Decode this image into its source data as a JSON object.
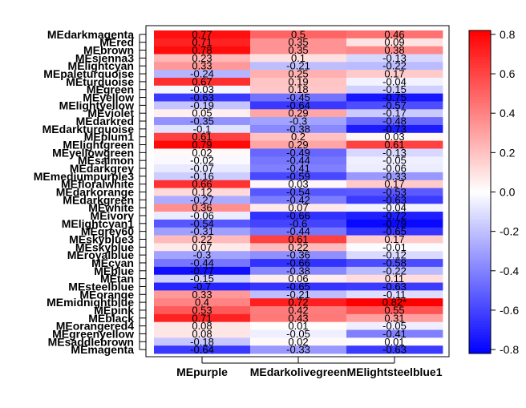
{
  "chart_data": {
    "type": "heatmap",
    "rows": [
      "MEdarkmagenta",
      "MEred",
      "MEbrown",
      "MEsienna3",
      "MElightcyan",
      "MEpaleturquoise",
      "MEturquoise",
      "MEgreen",
      "MEyellow",
      "MElightyellow",
      "MEviolet",
      "MEdarkred",
      "MEdarkturquoise",
      "MEplum1",
      "MElightgreen",
      "MEyellowgreen",
      "MEsalmon",
      "MEdarkgrey",
      "MEmediumpurple3",
      "MEfloralwhite",
      "MEdarkorange",
      "MEdarkgreen",
      "MEwhite",
      "MEivory",
      "MElightcyan1",
      "MEgrey60",
      "MEskyblue3",
      "MEskyblue",
      "MEroyalblue",
      "MEcyan",
      "MEblue",
      "MEtan",
      "MEsteelblue",
      "MEorange",
      "MEmidnightblue",
      "MEpink",
      "MEblack",
      "MEorangered4",
      "MEgreenyellow",
      "MEsaddlebrown",
      "MEmagenta"
    ],
    "columns": [
      "MEpurple",
      "MEdarkolivegreen",
      "MElightsteelblue1"
    ],
    "cell_labels": [
      [
        "0.77",
        "0.5",
        "0.46"
      ],
      [
        "0.71",
        "0.35",
        "0.09"
      ],
      [
        "0.78",
        "0.35",
        "0.38"
      ],
      [
        "0.23",
        "0.1",
        "-0.13"
      ],
      [
        "0.33",
        "-0.21",
        "-0.22"
      ],
      [
        "-0.24",
        "0.25",
        "0.17"
      ],
      [
        "0.67",
        "0.19",
        "-0.04"
      ],
      [
        "-0.03",
        "0.18",
        "-0.15"
      ],
      [
        "-0.63",
        "-0.45",
        "-0.75"
      ],
      [
        "-0.19",
        "-0.64",
        "-0.57"
      ],
      [
        "0.05",
        "0.29",
        "-0.17"
      ],
      [
        "-0.35",
        "-0.3",
        "-0.48"
      ],
      [
        "-0.1",
        "-0.38",
        "-0.73"
      ],
      [
        "0.61",
        "0.2",
        "0.03"
      ],
      [
        "0.79",
        "0.29",
        "0.61"
      ],
      [
        "0.02",
        "-0.49",
        "-0.13"
      ],
      [
        "-0.02",
        "-0.44",
        "-0.05"
      ],
      [
        "-0.07",
        "-0.41",
        "-0.06"
      ],
      [
        "-0.16",
        "-0.59",
        "-0.33"
      ],
      [
        "0.66",
        "0.03",
        "0.17"
      ],
      [
        "0.12",
        "-0.54",
        "-0.53"
      ],
      [
        "-0.27",
        "-0.42",
        "-0.63"
      ],
      [
        "0.36",
        "0.07",
        "-0.04"
      ],
      [
        "-0.06",
        "-0.66",
        "-0.72"
      ],
      [
        "-0.54",
        "-0.6",
        "-0.79"
      ],
      [
        "-0.31",
        "-0.44",
        "-0.65"
      ],
      [
        "0.22",
        "0.61",
        "0.17"
      ],
      [
        "0.07",
        "0.22",
        "-0.01"
      ],
      [
        "-0.3",
        "-0.36",
        "-0.12"
      ],
      [
        "-0.44",
        "-0.66",
        "-0.58"
      ],
      [
        "-0.77",
        "-0.38",
        "-0.22"
      ],
      [
        "-0.15",
        "0.06",
        "0.11"
      ],
      [
        "-0.7",
        "-0.65",
        "-0.63"
      ],
      [
        "0.33",
        "-0.21",
        "-0.11"
      ],
      [
        "0.4",
        "0.72",
        "0.82*"
      ],
      [
        "0.53",
        "0.42",
        "0.55"
      ],
      [
        "0.71",
        "0.43",
        "0.31"
      ],
      [
        "0.08",
        "0.01",
        "-0.05"
      ],
      [
        "0.08",
        "-0.05",
        "-0.41"
      ],
      [
        "-0.18",
        "0.02",
        "0.01"
      ],
      [
        "-0.64",
        "-0.33",
        "-0.63"
      ]
    ],
    "colorbar": {
      "min": -0.82,
      "max": 0.82,
      "ticks": [
        "0.8",
        "0.6",
        "0.4",
        "0.2",
        "0.0",
        "-0.2",
        "-0.4",
        "-0.6",
        "-0.8"
      ],
      "tick_values": [
        0.8,
        0.6,
        0.4,
        0.2,
        0.0,
        -0.2,
        -0.4,
        -0.6,
        -0.8
      ],
      "colors": {
        "low": "#0000ff",
        "mid": "#ffffff",
        "high": "#ff0000"
      }
    },
    "legend_position": "right"
  }
}
